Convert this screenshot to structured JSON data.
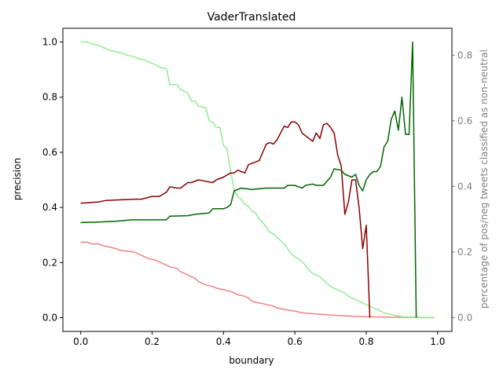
{
  "chart_data": {
    "type": "line",
    "title": "VaderTranslated",
    "xlabel": "boundary",
    "ylabel": "precision",
    "y2label": "percentage of pos/neg tweets classified as non-neutral",
    "xlim": [
      -0.05,
      1.04
    ],
    "ylim": [
      -0.05,
      1.05
    ],
    "y2lim": [
      -0.042,
      0.882
    ],
    "xticks": [
      "0.0",
      "0.2",
      "0.4",
      "0.6",
      "0.8",
      "1.0"
    ],
    "yticks": [
      "0.0",
      "0.2",
      "0.4",
      "0.6",
      "0.8",
      "1.0"
    ],
    "y2ticks": [
      "0.0",
      "0.2",
      "0.4",
      "0.6",
      "0.8"
    ],
    "grid": false,
    "legend": "none",
    "colors": {
      "precision_pos": "#006400",
      "precision_neg": "#8b0000",
      "coverage_pos": "#90ee90",
      "coverage_neg": "#f08080",
      "axis_right": "#808080"
    },
    "series": [
      {
        "axis": "left",
        "color": "#006400",
        "x": [
          0,
          0.05,
          0.1,
          0.12,
          0.14,
          0.2,
          0.24,
          0.25,
          0.3,
          0.32,
          0.36,
          0.37,
          0.4,
          0.41,
          0.42,
          0.43,
          0.45,
          0.48,
          0.52,
          0.55,
          0.57,
          0.58,
          0.6,
          0.62,
          0.63,
          0.65,
          0.66,
          0.68,
          0.7,
          0.71,
          0.73,
          0.74,
          0.76,
          0.77,
          0.78,
          0.79,
          0.8,
          0.81,
          0.82,
          0.83,
          0.84,
          0.85,
          0.86,
          0.87,
          0.88,
          0.89,
          0.9,
          0.91,
          0.92,
          0.93,
          0.94
        ],
        "y": [
          0.345,
          0.347,
          0.35,
          0.352,
          0.355,
          0.355,
          0.355,
          0.368,
          0.37,
          0.375,
          0.38,
          0.395,
          0.395,
          0.4,
          0.41,
          0.46,
          0.47,
          0.465,
          0.47,
          0.47,
          0.47,
          0.48,
          0.48,
          0.47,
          0.48,
          0.485,
          0.48,
          0.48,
          0.51,
          0.54,
          0.535,
          0.52,
          0.51,
          0.52,
          0.48,
          0.46,
          0.5,
          0.52,
          0.53,
          0.53,
          0.55,
          0.62,
          0.64,
          0.72,
          0.75,
          0.68,
          0.8,
          0.665,
          0.665,
          1.0,
          0.0
        ]
      },
      {
        "axis": "left",
        "color": "#8b0000",
        "x": [
          0,
          0.05,
          0.07,
          0.1,
          0.15,
          0.17,
          0.2,
          0.22,
          0.24,
          0.25,
          0.27,
          0.28,
          0.3,
          0.31,
          0.33,
          0.35,
          0.37,
          0.38,
          0.4,
          0.42,
          0.43,
          0.44,
          0.45,
          0.46,
          0.47,
          0.48,
          0.5,
          0.51,
          0.52,
          0.53,
          0.54,
          0.55,
          0.56,
          0.57,
          0.58,
          0.59,
          0.6,
          0.61,
          0.62,
          0.63,
          0.65,
          0.66,
          0.67,
          0.68,
          0.69,
          0.7,
          0.71,
          0.72,
          0.73,
          0.74,
          0.75,
          0.76,
          0.77,
          0.78,
          0.79,
          0.8,
          0.81
        ],
        "y": [
          0.415,
          0.42,
          0.425,
          0.427,
          0.43,
          0.43,
          0.44,
          0.44,
          0.455,
          0.475,
          0.47,
          0.47,
          0.49,
          0.49,
          0.5,
          0.495,
          0.49,
          0.5,
          0.51,
          0.525,
          0.525,
          0.535,
          0.53,
          0.525,
          0.555,
          0.56,
          0.57,
          0.6,
          0.63,
          0.635,
          0.63,
          0.645,
          0.67,
          0.695,
          0.69,
          0.71,
          0.71,
          0.7,
          0.67,
          0.66,
          0.64,
          0.67,
          0.65,
          0.7,
          0.705,
          0.69,
          0.67,
          0.59,
          0.55,
          0.375,
          0.42,
          0.5,
          0.5,
          0.4,
          0.25,
          0.335,
          0.0
        ]
      },
      {
        "axis": "right",
        "color": "#90ee90",
        "x": [
          0,
          0.02,
          0.03,
          0.05,
          0.06,
          0.07,
          0.08,
          0.1,
          0.12,
          0.13,
          0.15,
          0.16,
          0.18,
          0.19,
          0.21,
          0.22,
          0.23,
          0.24,
          0.25,
          0.27,
          0.28,
          0.3,
          0.31,
          0.32,
          0.33,
          0.35,
          0.36,
          0.37,
          0.38,
          0.39,
          0.4,
          0.41,
          0.42,
          0.43,
          0.44,
          0.45,
          0.46,
          0.47,
          0.48,
          0.49,
          0.5,
          0.51,
          0.52,
          0.53,
          0.54,
          0.55,
          0.56,
          0.57,
          0.58,
          0.59,
          0.6,
          0.61,
          0.62,
          0.63,
          0.64,
          0.65,
          0.66,
          0.67,
          0.68,
          0.69,
          0.7,
          0.71,
          0.72,
          0.73,
          0.74,
          0.75,
          0.76,
          0.77,
          0.78,
          0.79,
          0.8,
          0.81,
          0.82,
          0.83,
          0.84,
          0.85,
          0.86,
          0.87,
          0.88,
          0.89,
          0.9,
          0.92,
          0.95,
          0.99
        ],
        "y": [
          0.84,
          0.84,
          0.835,
          0.83,
          0.825,
          0.82,
          0.815,
          0.81,
          0.805,
          0.8,
          0.795,
          0.79,
          0.785,
          0.78,
          0.77,
          0.765,
          0.76,
          0.76,
          0.71,
          0.71,
          0.695,
          0.685,
          0.66,
          0.66,
          0.645,
          0.64,
          0.6,
          0.595,
          0.58,
          0.58,
          0.525,
          0.515,
          0.445,
          0.39,
          0.37,
          0.36,
          0.345,
          0.34,
          0.325,
          0.32,
          0.3,
          0.29,
          0.275,
          0.26,
          0.255,
          0.245,
          0.235,
          0.225,
          0.21,
          0.195,
          0.185,
          0.18,
          0.17,
          0.16,
          0.145,
          0.135,
          0.13,
          0.125,
          0.115,
          0.105,
          0.095,
          0.09,
          0.085,
          0.08,
          0.075,
          0.065,
          0.06,
          0.055,
          0.05,
          0.045,
          0.04,
          0.035,
          0.03,
          0.025,
          0.02,
          0.015,
          0.012,
          0.01,
          0.008,
          0.005,
          0.003,
          0.002,
          0.001,
          0.0
        ]
      },
      {
        "axis": "right",
        "color": "#f08080",
        "x": [
          0,
          0.02,
          0.03,
          0.05,
          0.06,
          0.08,
          0.1,
          0.11,
          0.15,
          0.16,
          0.18,
          0.19,
          0.21,
          0.22,
          0.23,
          0.25,
          0.27,
          0.28,
          0.3,
          0.32,
          0.33,
          0.35,
          0.37,
          0.38,
          0.4,
          0.42,
          0.43,
          0.44,
          0.46,
          0.47,
          0.48,
          0.5,
          0.52,
          0.54,
          0.55,
          0.57,
          0.6,
          0.62,
          0.65,
          0.7,
          0.75,
          0.8,
          0.9,
          0.99
        ],
        "y": [
          0.23,
          0.23,
          0.225,
          0.225,
          0.22,
          0.215,
          0.21,
          0.205,
          0.2,
          0.195,
          0.185,
          0.18,
          0.175,
          0.17,
          0.165,
          0.155,
          0.15,
          0.14,
          0.13,
          0.12,
          0.11,
          0.1,
          0.095,
          0.09,
          0.085,
          0.08,
          0.075,
          0.07,
          0.065,
          0.06,
          0.05,
          0.045,
          0.04,
          0.035,
          0.03,
          0.025,
          0.02,
          0.015,
          0.012,
          0.008,
          0.005,
          0.003,
          0.001,
          0.0
        ]
      }
    ]
  }
}
